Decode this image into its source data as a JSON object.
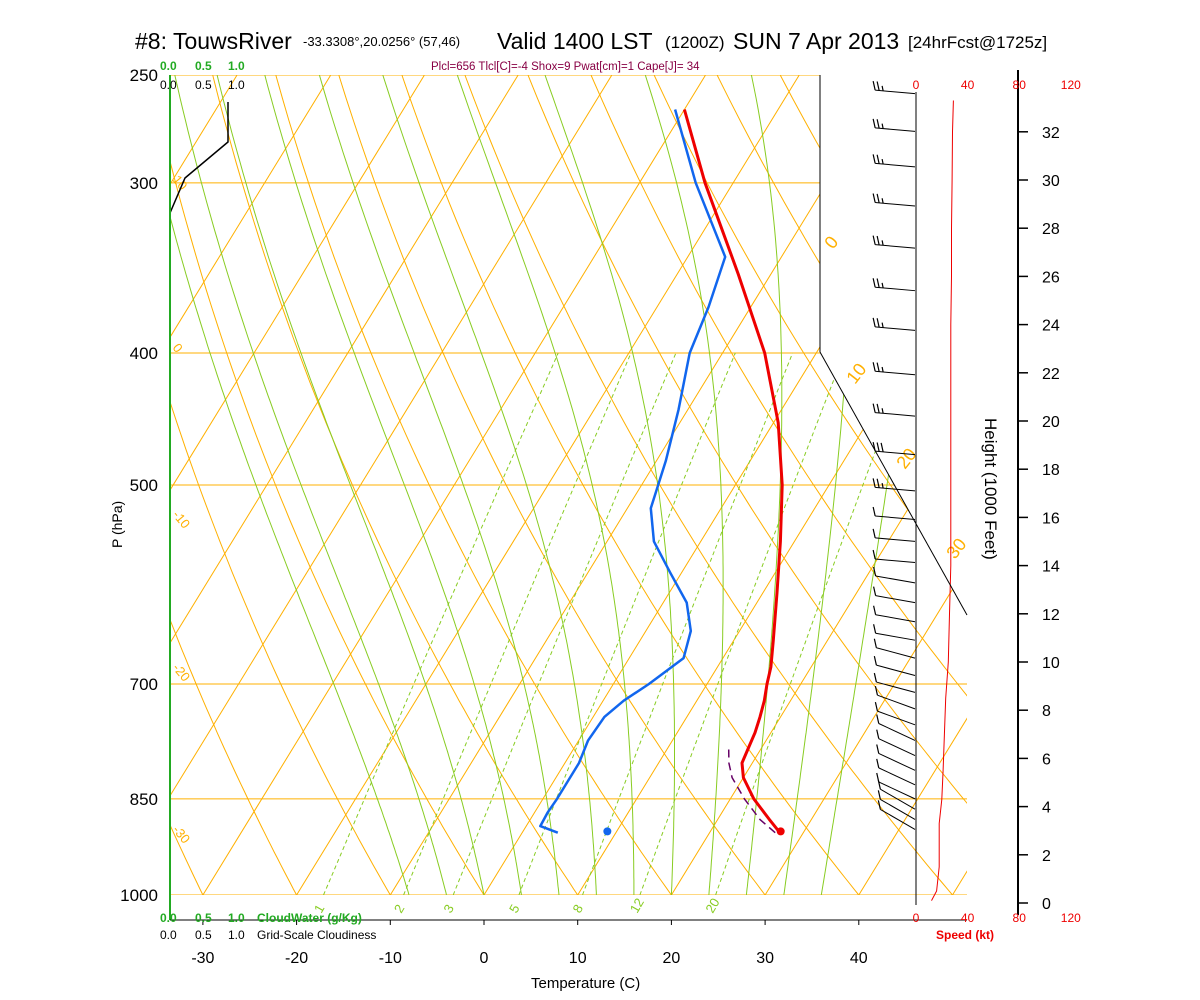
{
  "header": {
    "station": "#8: TouwsRiver",
    "coords": "-33.3308°,20.0256° (57,46)",
    "valid": "Valid 1400 LST",
    "utc": "(1200Z)",
    "date": "SUN 7 Apr 2013",
    "forecast": "[24hrFcst@1725z]",
    "params": "Plcl=656 Tlcl[C]=-4 Shox=9 Pwat[cm]=1 Cape[J]= 34"
  },
  "colors": {
    "temperature": "#ee0000",
    "dewpoint": "#1166ee",
    "isobar": "#ffb000",
    "isotherm": "#ffb000",
    "dry_adiabat": "#ffb000",
    "moist_adiabat": "#88cc22",
    "mixing_ratio": "#88cc22",
    "cloud_water": "#22aa22",
    "wind_speed": "#ee0000",
    "parcel": "#660066"
  },
  "chart_data": {
    "type": "skew-t",
    "title": "#8: TouwsRiver -33.3308°,20.0256° (57,46) Valid 1400 LST (1200Z) SUN 7 Apr 2013 [24hrFcst@1725z]",
    "subtitle": "Plcl=656 Tlcl[C]=-4 Shox=9 Pwat[cm]=1 Cape[J]= 34",
    "xlabel": "Temperature (C)",
    "ylabel": "P (hPa)",
    "y2label": "Height (1000 Feet)",
    "xlim": [
      -33,
      47
    ],
    "ylim": [
      1000,
      250
    ],
    "y_scale": "log",
    "grid": true,
    "x_ticks": [
      -30,
      -20,
      -10,
      0,
      10,
      20,
      30,
      40
    ],
    "pressure_ticks": [
      1000,
      850,
      700,
      500,
      400,
      300,
      250
    ],
    "height_ticks": [
      0,
      2,
      4,
      6,
      8,
      10,
      12,
      14,
      16,
      18,
      20,
      22,
      24,
      26,
      28,
      30,
      32
    ],
    "isotherm_labels": [
      "-30",
      "-20",
      "-10",
      "0",
      "10",
      "20",
      "30"
    ],
    "dry_adiabat_labels": [
      "10",
      "0",
      "-10",
      "-20",
      "-30"
    ],
    "mixing_ratio_labels": [
      "1",
      "2",
      "3",
      "5",
      "8",
      "12",
      "20"
    ],
    "series": [
      {
        "name": "temperature",
        "points": [
          [
            900,
            27.5
          ],
          [
            880,
            25.5
          ],
          [
            850,
            22.5
          ],
          [
            820,
            20.0
          ],
          [
            800,
            18.9
          ],
          [
            780,
            18.6
          ],
          [
            760,
            18.3
          ],
          [
            740,
            17.8
          ],
          [
            720,
            17.2
          ],
          [
            700,
            16.4
          ],
          [
            680,
            15.7
          ],
          [
            650,
            14.2
          ],
          [
            600,
            11.5
          ],
          [
            550,
            8.5
          ],
          [
            500,
            5.0
          ],
          [
            450,
            0.5
          ],
          [
            400,
            -5.5
          ],
          [
            350,
            -13.5
          ],
          [
            300,
            -23.0
          ],
          [
            265,
            -30.0
          ]
        ]
      },
      {
        "name": "dewpoint",
        "points": [
          [
            900,
            3.8
          ],
          [
            890,
            1.5
          ],
          [
            870,
            1.4
          ],
          [
            850,
            1.5
          ],
          [
            800,
            1.5
          ],
          [
            770,
            1.0
          ],
          [
            740,
            1.2
          ],
          [
            720,
            2.2
          ],
          [
            700,
            3.8
          ],
          [
            670,
            5.8
          ],
          [
            640,
            4.8
          ],
          [
            610,
            2.5
          ],
          [
            580,
            -1.2
          ],
          [
            550,
            -5.0
          ],
          [
            520,
            -7.5
          ],
          [
            480,
            -9.0
          ],
          [
            440,
            -11.0
          ],
          [
            400,
            -13.5
          ],
          [
            370,
            -14.5
          ],
          [
            340,
            -16.0
          ],
          [
            300,
            -24.0
          ],
          [
            265,
            -31.0
          ]
        ]
      },
      {
        "name": "parcel",
        "points": [
          [
            900,
            27.0
          ],
          [
            880,
            24.5
          ],
          [
            850,
            21.5
          ],
          [
            820,
            18.8
          ],
          [
            800,
            17.5
          ],
          [
            780,
            16.5
          ]
        ]
      }
    ],
    "surface_temperature_marker": {
      "p": 898,
      "t": 27.5
    },
    "surface_dewpoint_marker": {
      "p": 898,
      "t": 9.0
    },
    "cloud_water_axis": {
      "label": "CloudWater (g/Kg)",
      "ticks": [
        "0.0",
        "0.5",
        "1.0"
      ]
    },
    "cloudiness_axis": {
      "label": "Grid-Scale Cloudiness",
      "ticks": [
        "0.0",
        "0.5",
        "1.0"
      ]
    },
    "wind_speed_axis": {
      "label": "Speed (kt)",
      "ticks": [
        "0",
        "40",
        "80",
        "120"
      ]
    },
    "wind_speed_profile": [
      [
        0.1,
        12
      ],
      [
        0.5,
        16
      ],
      [
        1.5,
        18
      ],
      [
        2.5,
        18
      ],
      [
        3.3,
        18
      ],
      [
        4.3,
        20
      ],
      [
        5.5,
        21
      ],
      [
        7.0,
        22
      ],
      [
        8.5,
        23
      ],
      [
        10.0,
        25
      ],
      [
        12.0,
        26
      ],
      [
        14.0,
        27
      ],
      [
        16.0,
        27
      ],
      [
        18.0,
        27
      ],
      [
        20.0,
        27
      ],
      [
        22.0,
        27
      ],
      [
        24.0,
        27
      ],
      [
        26.0,
        27.5
      ],
      [
        28.0,
        27.5
      ],
      [
        30.0,
        28
      ],
      [
        32.0,
        28.3
      ],
      [
        33.3,
        29
      ]
    ],
    "wind_barbs": [
      {
        "p": 895,
        "speed": 10,
        "dir": 300
      },
      {
        "p": 880,
        "speed": 10,
        "dir": 300
      },
      {
        "p": 865,
        "speed": 10,
        "dir": 300
      },
      {
        "p": 850,
        "speed": 10,
        "dir": 295
      },
      {
        "p": 830,
        "speed": 10,
        "dir": 295
      },
      {
        "p": 810,
        "speed": 10,
        "dir": 295
      },
      {
        "p": 790,
        "speed": 10,
        "dir": 295
      },
      {
        "p": 770,
        "speed": 10,
        "dir": 295
      },
      {
        "p": 750,
        "speed": 10,
        "dir": 290
      },
      {
        "p": 730,
        "speed": 10,
        "dir": 290
      },
      {
        "p": 710,
        "speed": 10,
        "dir": 285
      },
      {
        "p": 690,
        "speed": 10,
        "dir": 285
      },
      {
        "p": 670,
        "speed": 10,
        "dir": 285
      },
      {
        "p": 650,
        "speed": 10,
        "dir": 280
      },
      {
        "p": 630,
        "speed": 10,
        "dir": 280
      },
      {
        "p": 610,
        "speed": 10,
        "dir": 280
      },
      {
        "p": 590,
        "speed": 10,
        "dir": 280
      },
      {
        "p": 570,
        "speed": 10,
        "dir": 275
      },
      {
        "p": 550,
        "speed": 10,
        "dir": 275
      },
      {
        "p": 530,
        "speed": 10,
        "dir": 275
      },
      {
        "p": 505,
        "speed": 25,
        "dir": 275
      },
      {
        "p": 475,
        "speed": 30,
        "dir": 275
      },
      {
        "p": 445,
        "speed": 25,
        "dir": 275
      },
      {
        "p": 415,
        "speed": 25,
        "dir": 275
      },
      {
        "p": 385,
        "speed": 25,
        "dir": 275
      },
      {
        "p": 360,
        "speed": 25,
        "dir": 275
      },
      {
        "p": 335,
        "speed": 25,
        "dir": 275
      },
      {
        "p": 312,
        "speed": 25,
        "dir": 275
      },
      {
        "p": 292,
        "speed": 25,
        "dir": 275
      },
      {
        "p": 275,
        "speed": 25,
        "dir": 275
      },
      {
        "p": 258,
        "speed": 25,
        "dir": 275
      }
    ]
  }
}
